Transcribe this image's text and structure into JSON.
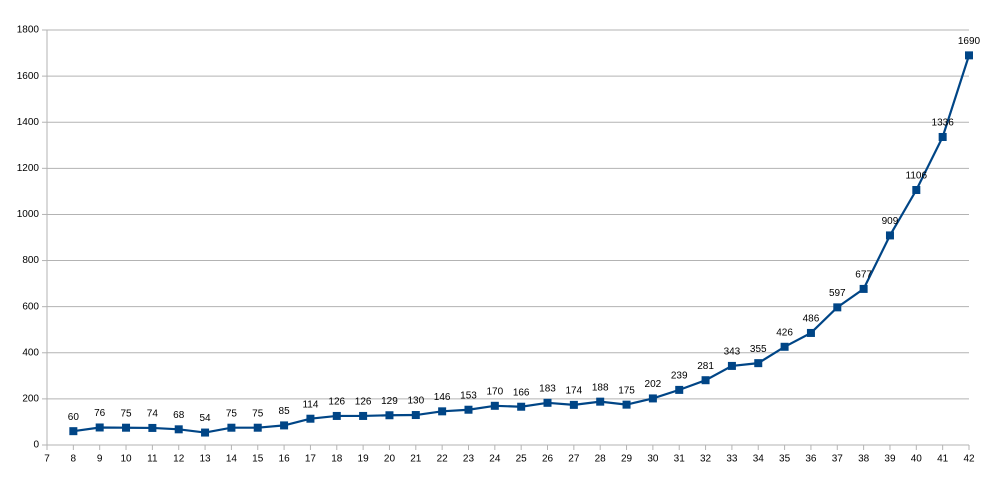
{
  "chart_data": {
    "type": "line",
    "x": [
      8,
      9,
      10,
      11,
      12,
      13,
      14,
      15,
      16,
      17,
      18,
      19,
      20,
      21,
      22,
      23,
      24,
      25,
      26,
      27,
      28,
      29,
      30,
      31,
      32,
      33,
      34,
      35,
      36,
      37,
      38,
      39,
      40,
      41,
      42
    ],
    "values": [
      60,
      76,
      75,
      74,
      68,
      54,
      75,
      75,
      85,
      114,
      126,
      126,
      129,
      130,
      146,
      153,
      170,
      166,
      183,
      174,
      188,
      175,
      202,
      239,
      281,
      343,
      355,
      426,
      486,
      597,
      677,
      909,
      1106,
      1336,
      1690
    ],
    "color": "#004586",
    "xlim": [
      7,
      42
    ],
    "xticks": [
      7,
      8,
      9,
      10,
      11,
      12,
      13,
      14,
      15,
      16,
      17,
      18,
      19,
      20,
      21,
      22,
      23,
      24,
      25,
      26,
      27,
      28,
      29,
      30,
      31,
      32,
      33,
      34,
      35,
      36,
      37,
      38,
      39,
      40,
      41,
      42
    ],
    "ylim": [
      0,
      1800
    ],
    "yticks": [
      0,
      200,
      400,
      600,
      800,
      1000,
      1200,
      1400,
      1600,
      1800
    ],
    "grid": true,
    "data_labels": true
  }
}
